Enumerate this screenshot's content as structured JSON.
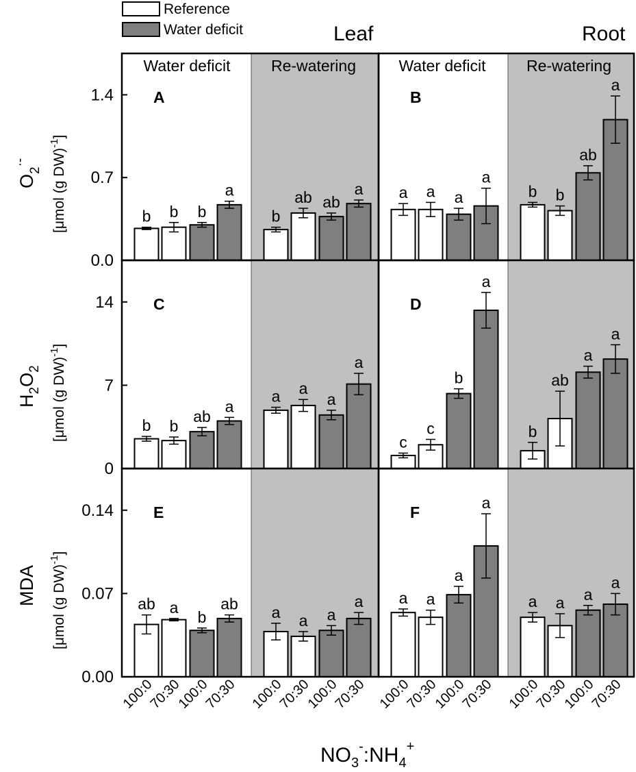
{
  "colors": {
    "reference_fill": "#ffffff",
    "deficit_fill": "#7f7f7f",
    "rewatering_bg": "#c0c0c0",
    "axis": "#000000"
  },
  "legend": {
    "reference": "Reference",
    "deficit": "Water deficit"
  },
  "organs": {
    "leaf": "Leaf",
    "root": "Root"
  },
  "phases": {
    "deficit": "Water deficit",
    "rewatering": "Re-watering"
  },
  "x_axis_title": {
    "main": "NO",
    "sub1": "3",
    "sup1": "-",
    "mid": ":NH",
    "sub2": "4",
    "sup2": "+"
  },
  "unit_label": "[μmol (g DW)",
  "unit_exponent": "-1",
  "row_labels": {
    "o2": {
      "main": "O",
      "sub": "2",
      "sup": "·-"
    },
    "h2o2": {
      "h": "H",
      "s1": "2",
      "o": "O",
      "s2": "2"
    },
    "mda": "MDA"
  },
  "chart_data": [
    {
      "type": "bar",
      "panel": "A",
      "organ": "Leaf",
      "row": "O2",
      "ylim": [
        0,
        1.75
      ],
      "yticks": [
        "0.0",
        "0.7",
        "1.4"
      ],
      "ytick_values": [
        0,
        0.7,
        1.4
      ],
      "groups": [
        {
          "phase": "Water deficit",
          "bars": [
            {
              "category": "100:0",
              "series": "Reference",
              "value": 0.27,
              "err": 0.01,
              "letter": "b"
            },
            {
              "category": "70:30",
              "series": "Reference",
              "value": 0.28,
              "err": 0.04,
              "letter": "b"
            },
            {
              "category": "100:0",
              "series": "Water deficit",
              "value": 0.3,
              "err": 0.02,
              "letter": "b"
            },
            {
              "category": "70:30",
              "series": "Water deficit",
              "value": 0.47,
              "err": 0.03,
              "letter": "a"
            }
          ]
        },
        {
          "phase": "Re-watering",
          "bars": [
            {
              "category": "100:0",
              "series": "Reference",
              "value": 0.26,
              "err": 0.02,
              "letter": "b"
            },
            {
              "category": "70:30",
              "series": "Reference",
              "value": 0.4,
              "err": 0.04,
              "letter": "ab"
            },
            {
              "category": "100:0",
              "series": "Water deficit",
              "value": 0.37,
              "err": 0.03,
              "letter": "ab"
            },
            {
              "category": "70:30",
              "series": "Water deficit",
              "value": 0.48,
              "err": 0.03,
              "letter": "a"
            }
          ]
        }
      ]
    },
    {
      "type": "bar",
      "panel": "B",
      "organ": "Root",
      "row": "O2",
      "ylim": [
        0,
        1.75
      ],
      "yticks": [
        "0.0",
        "0.7",
        "1.4"
      ],
      "ytick_values": [
        0,
        0.7,
        1.4
      ],
      "groups": [
        {
          "phase": "Water deficit",
          "bars": [
            {
              "category": "100:0",
              "series": "Reference",
              "value": 0.43,
              "err": 0.05,
              "letter": "a"
            },
            {
              "category": "70:30",
              "series": "Reference",
              "value": 0.43,
              "err": 0.06,
              "letter": "a"
            },
            {
              "category": "100:0",
              "series": "Water deficit",
              "value": 0.39,
              "err": 0.05,
              "letter": "a"
            },
            {
              "category": "70:30",
              "series": "Water deficit",
              "value": 0.46,
              "err": 0.15,
              "letter": "a"
            }
          ]
        },
        {
          "phase": "Re-watering",
          "bars": [
            {
              "category": "100:0",
              "series": "Reference",
              "value": 0.47,
              "err": 0.02,
              "letter": "b"
            },
            {
              "category": "70:30",
              "series": "Reference",
              "value": 0.42,
              "err": 0.04,
              "letter": "b"
            },
            {
              "category": "100:0",
              "series": "Water deficit",
              "value": 0.74,
              "err": 0.06,
              "letter": "ab"
            },
            {
              "category": "70:30",
              "series": "Water deficit",
              "value": 1.19,
              "err": 0.2,
              "letter": "a"
            }
          ]
        }
      ]
    },
    {
      "type": "bar",
      "panel": "C",
      "organ": "Leaf",
      "row": "H2O2",
      "ylim": [
        0,
        17.5
      ],
      "yticks": [
        "0",
        "7",
        "14"
      ],
      "ytick_values": [
        0,
        7,
        14
      ],
      "groups": [
        {
          "phase": "Water deficit",
          "bars": [
            {
              "category": "100:0",
              "series": "Reference",
              "value": 2.5,
              "err": 0.2,
              "letter": "b"
            },
            {
              "category": "70:30",
              "series": "Reference",
              "value": 2.35,
              "err": 0.3,
              "letter": "b"
            },
            {
              "category": "100:0",
              "series": "Water deficit",
              "value": 3.1,
              "err": 0.35,
              "letter": "ab"
            },
            {
              "category": "70:30",
              "series": "Water deficit",
              "value": 4.0,
              "err": 0.3,
              "letter": "a"
            }
          ]
        },
        {
          "phase": "Re-watering",
          "bars": [
            {
              "category": "100:0",
              "series": "Reference",
              "value": 4.9,
              "err": 0.25,
              "letter": "a"
            },
            {
              "category": "70:30",
              "series": "Reference",
              "value": 5.3,
              "err": 0.5,
              "letter": "a"
            },
            {
              "category": "100:0",
              "series": "Water deficit",
              "value": 4.5,
              "err": 0.4,
              "letter": "a"
            },
            {
              "category": "70:30",
              "series": "Water deficit",
              "value": 7.1,
              "err": 0.9,
              "letter": "a"
            }
          ]
        }
      ]
    },
    {
      "type": "bar",
      "panel": "D",
      "organ": "Root",
      "row": "H2O2",
      "ylim": [
        0,
        17.5
      ],
      "yticks": [
        "0",
        "7",
        "14"
      ],
      "ytick_values": [
        0,
        7,
        14
      ],
      "groups": [
        {
          "phase": "Water deficit",
          "bars": [
            {
              "category": "100:0",
              "series": "Reference",
              "value": 1.1,
              "err": 0.2,
              "letter": "c"
            },
            {
              "category": "70:30",
              "series": "Reference",
              "value": 2.0,
              "err": 0.45,
              "letter": "c"
            },
            {
              "category": "100:0",
              "series": "Water deficit",
              "value": 6.3,
              "err": 0.4,
              "letter": "b"
            },
            {
              "category": "70:30",
              "series": "Water deficit",
              "value": 13.3,
              "err": 1.5,
              "letter": "a"
            }
          ]
        },
        {
          "phase": "Re-watering",
          "bars": [
            {
              "category": "100:0",
              "series": "Reference",
              "value": 1.5,
              "err": 0.7,
              "letter": "b"
            },
            {
              "category": "70:30",
              "series": "Reference",
              "value": 4.2,
              "err": 2.3,
              "letter": "ab"
            },
            {
              "category": "100:0",
              "series": "Water deficit",
              "value": 8.1,
              "err": 0.5,
              "letter": "a"
            },
            {
              "category": "70:30",
              "series": "Water deficit",
              "value": 9.2,
              "err": 1.2,
              "letter": "a"
            }
          ]
        }
      ]
    },
    {
      "type": "bar",
      "panel": "E",
      "organ": "Leaf",
      "row": "MDA",
      "ylim": [
        0,
        0.175
      ],
      "yticks": [
        "0.00",
        "0.07",
        "0.14"
      ],
      "ytick_values": [
        0,
        0.07,
        0.14
      ],
      "groups": [
        {
          "phase": "Water deficit",
          "bars": [
            {
              "category": "100:0",
              "series": "Reference",
              "value": 0.044,
              "err": 0.008,
              "letter": "ab"
            },
            {
              "category": "70:30",
              "series": "Reference",
              "value": 0.048,
              "err": 0.001,
              "letter": "a"
            },
            {
              "category": "100:0",
              "series": "Water deficit",
              "value": 0.039,
              "err": 0.002,
              "letter": "b"
            },
            {
              "category": "70:30",
              "series": "Water deficit",
              "value": 0.049,
              "err": 0.003,
              "letter": "ab"
            }
          ]
        },
        {
          "phase": "Re-watering",
          "bars": [
            {
              "category": "100:0",
              "series": "Reference",
              "value": 0.038,
              "err": 0.007,
              "letter": "a"
            },
            {
              "category": "70:30",
              "series": "Reference",
              "value": 0.034,
              "err": 0.004,
              "letter": "a"
            },
            {
              "category": "100:0",
              "series": "Water deficit",
              "value": 0.039,
              "err": 0.004,
              "letter": "a"
            },
            {
              "category": "70:30",
              "series": "Water deficit",
              "value": 0.049,
              "err": 0.005,
              "letter": "a"
            }
          ]
        }
      ]
    },
    {
      "type": "bar",
      "panel": "F",
      "organ": "Root",
      "row": "MDA",
      "ylim": [
        0,
        0.175
      ],
      "yticks": [
        "0.00",
        "0.07",
        "0.14"
      ],
      "ytick_values": [
        0,
        0.07,
        0.14
      ],
      "groups": [
        {
          "phase": "Water deficit",
          "bars": [
            {
              "category": "100:0",
              "series": "Reference",
              "value": 0.054,
              "err": 0.003,
              "letter": "a"
            },
            {
              "category": "70:30",
              "series": "Reference",
              "value": 0.05,
              "err": 0.006,
              "letter": "a"
            },
            {
              "category": "100:0",
              "series": "Water deficit",
              "value": 0.069,
              "err": 0.007,
              "letter": "a"
            },
            {
              "category": "70:30",
              "series": "Water deficit",
              "value": 0.11,
              "err": 0.027,
              "letter": "a"
            }
          ]
        },
        {
          "phase": "Re-watering",
          "bars": [
            {
              "category": "100:0",
              "series": "Reference",
              "value": 0.05,
              "err": 0.004,
              "letter": "a"
            },
            {
              "category": "70:30",
              "series": "Reference",
              "value": 0.043,
              "err": 0.01,
              "letter": "a"
            },
            {
              "category": "100:0",
              "series": "Water deficit",
              "value": 0.056,
              "err": 0.004,
              "letter": "a"
            },
            {
              "category": "70:30",
              "series": "Water deficit",
              "value": 0.061,
              "err": 0.009,
              "letter": "a"
            }
          ]
        }
      ]
    }
  ]
}
